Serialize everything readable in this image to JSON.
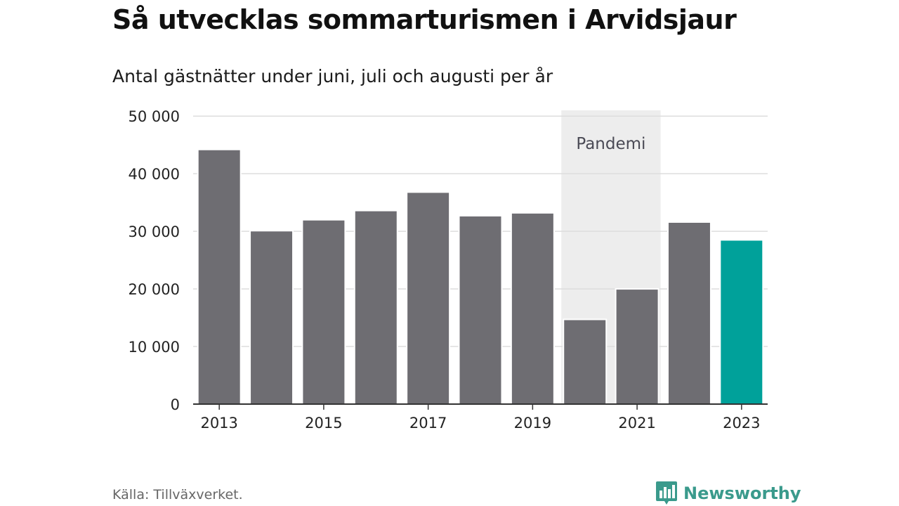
{
  "title": "Så utvecklas sommarturismen i Arvidsjaur",
  "subtitle": "Antal gästnätter under juni, juli och augusti per år",
  "source": "Källa: Tillväxverket.",
  "brand": {
    "name": "Newsworthy",
    "logo_icon": "bar-chart-speech-bubble-icon",
    "color": "#3a9a8c"
  },
  "colors": {
    "bar": "#6e6d72",
    "highlight": "#00a19a",
    "pandemic_band": "#ededed",
    "grid": "#dddddd",
    "axis": "#333333"
  },
  "chart_data": {
    "type": "bar",
    "categories": [
      "2013",
      "2014",
      "2015",
      "2016",
      "2017",
      "2018",
      "2019",
      "2020",
      "2021",
      "2022",
      "2023"
    ],
    "values": [
      44200,
      30100,
      32000,
      33600,
      36800,
      32700,
      33200,
      14700,
      20000,
      31600,
      28500
    ],
    "highlight_category": "2023",
    "xticks": [
      "2013",
      "2015",
      "2017",
      "2019",
      "2021",
      "2023"
    ],
    "yticks": [
      0,
      10000,
      20000,
      30000,
      40000,
      50000
    ],
    "ytick_labels": [
      "0",
      "10 000",
      "20 000",
      "30 000",
      "40 000",
      "50 000"
    ],
    "ylim": [
      0,
      51000
    ],
    "grid": true,
    "annotation": {
      "label": "Pandemi",
      "start": "2020",
      "end": "2021"
    }
  }
}
